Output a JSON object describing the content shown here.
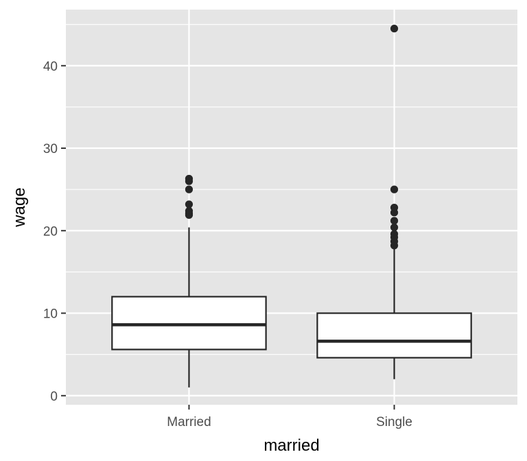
{
  "chart_data": {
    "type": "boxplot",
    "xlabel": "married",
    "ylabel": "wage",
    "ylim": [
      -1.1,
      46.8
    ],
    "yticks": [
      0,
      10,
      20,
      30,
      40
    ],
    "categories": [
      "Married",
      "Single"
    ],
    "grid": true,
    "legend": "none",
    "colors": {
      "panel": "#e5e5e5",
      "grid": "#ffffff",
      "box_fill": "#ffffff",
      "stroke": "#262626",
      "tick_text": "#4d4d4d"
    },
    "boxes": [
      {
        "category": "Married",
        "lower_whisker": 1.0,
        "q1": 5.6,
        "median": 8.6,
        "q3": 12.0,
        "upper_whisker": 20.4,
        "outliers": [
          21.9,
          22.1,
          22.4,
          23.2,
          25.0,
          26.0,
          26.3
        ]
      },
      {
        "category": "Single",
        "lower_whisker": 2.0,
        "q1": 4.6,
        "median": 6.6,
        "q3": 10.0,
        "upper_whisker": 18.0,
        "outliers": [
          18.2,
          18.7,
          19.2,
          19.6,
          20.4,
          21.2,
          22.2,
          22.8,
          25.0,
          44.5
        ]
      }
    ]
  }
}
